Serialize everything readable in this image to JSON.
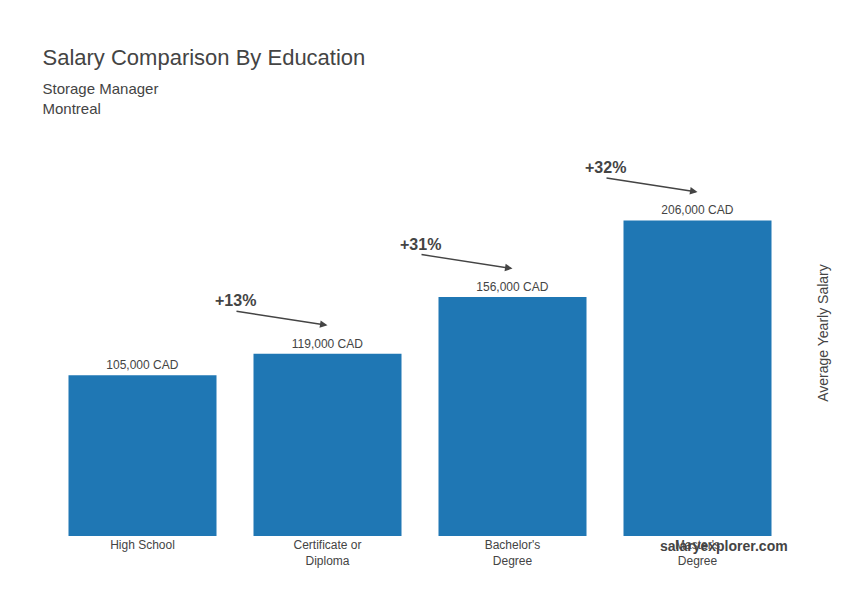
{
  "chart_data": {
    "type": "bar",
    "title": "Salary Comparison By Education",
    "subtitle": [
      "Storage Manager",
      "Montreal"
    ],
    "categories": [
      "High School",
      "Certificate or\nDiploma",
      "Bachelor's\nDegree",
      "Master's\nDegree"
    ],
    "values": [
      105000,
      119000,
      156000,
      206000
    ],
    "value_labels": [
      "105,000 CAD",
      "119,000 CAD",
      "156,000 CAD",
      "206,000 CAD"
    ],
    "data_labels": true,
    "ylabel": "Average Yearly Salary",
    "ylim": [
      0,
      265000
    ],
    "tick_labels": "x",
    "grid": false,
    "annotations": [
      {
        "text": "+13%",
        "from": 0,
        "to": 1
      },
      {
        "text": "+31%",
        "from": 1,
        "to": 2
      },
      {
        "text": "+32%",
        "from": 2,
        "to": 3
      },
      {
        "text": "salaryexplorer.com"
      }
    ]
  }
}
